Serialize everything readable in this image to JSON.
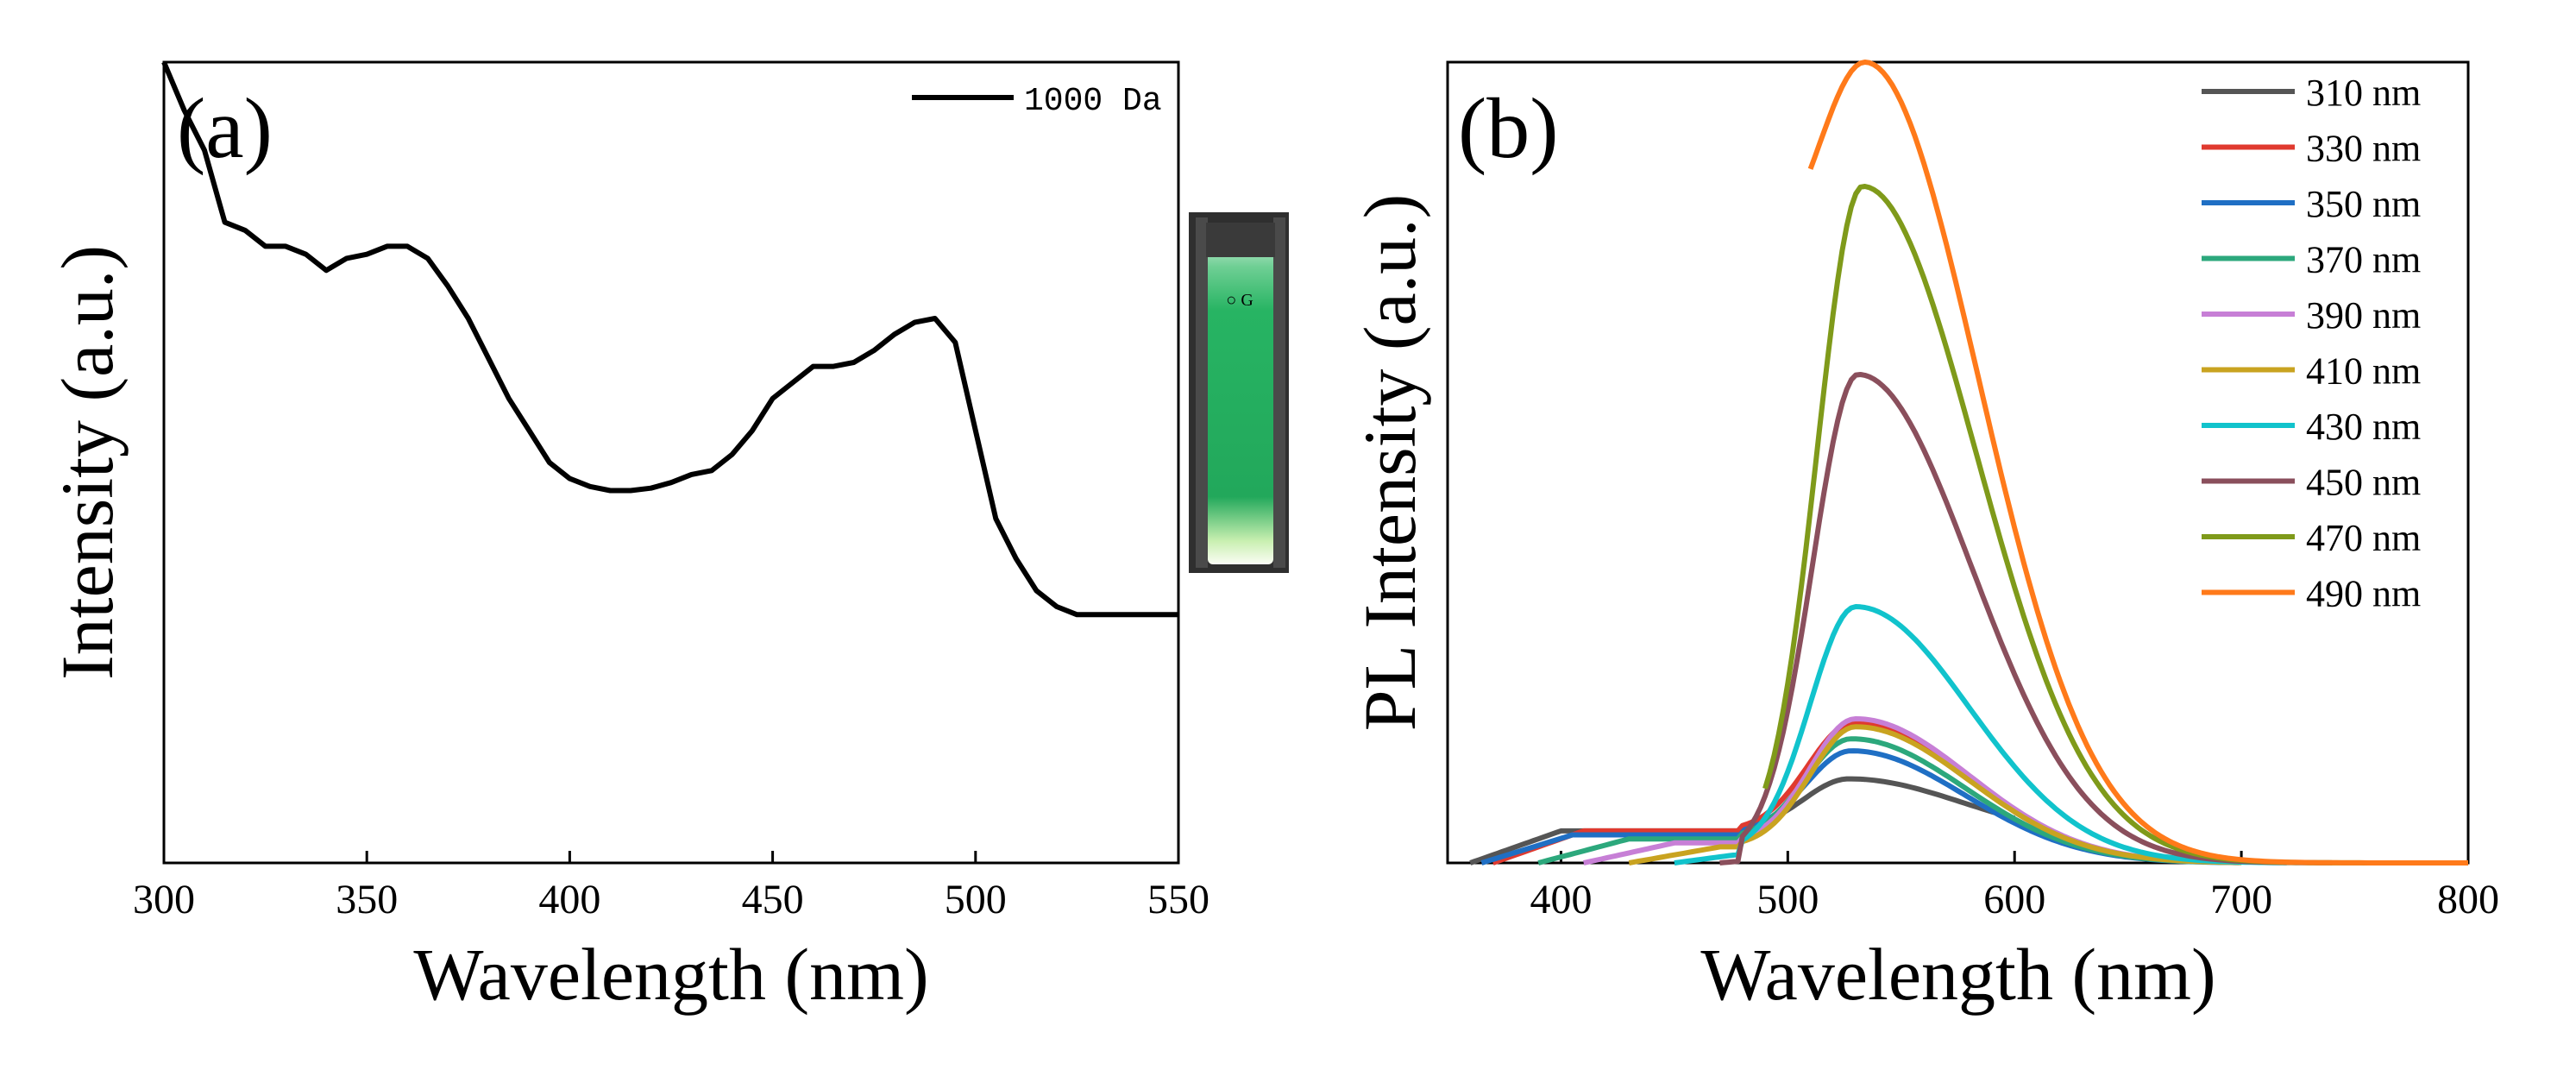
{
  "chart_data": [
    {
      "type": "line",
      "panel_label": "(a)",
      "xlabel": "Wavelength (nm)",
      "ylabel": "Intensity (a.u.)",
      "xlim": [
        300,
        550
      ],
      "ylim": [
        0,
        1
      ],
      "x_ticks": [
        "300",
        "350",
        "400",
        "450",
        "500",
        "550"
      ],
      "y_ticks": [],
      "legend_position": "top-right",
      "inset": "photo of cuvette with green fluorescent solution",
      "colors": {
        "line": "#000000"
      },
      "series": [
        {
          "name": "1000 Da",
          "x": [
            300,
            305,
            310,
            315,
            320,
            325,
            330,
            335,
            340,
            345,
            350,
            355,
            360,
            365,
            370,
            375,
            380,
            385,
            390,
            395,
            400,
            405,
            410,
            415,
            420,
            425,
            430,
            435,
            440,
            445,
            450,
            455,
            460,
            465,
            470,
            475,
            480,
            485,
            490,
            495,
            500,
            505,
            510,
            515,
            520,
            525,
            530,
            535,
            540,
            545,
            550
          ],
          "values": [
            1.0,
            0.94,
            0.89,
            0.8,
            0.79,
            0.77,
            0.77,
            0.76,
            0.74,
            0.755,
            0.76,
            0.77,
            0.77,
            0.755,
            0.72,
            0.68,
            0.63,
            0.58,
            0.54,
            0.5,
            0.48,
            0.47,
            0.465,
            0.465,
            0.468,
            0.475,
            0.485,
            0.49,
            0.51,
            0.54,
            0.58,
            0.6,
            0.62,
            0.62,
            0.625,
            0.64,
            0.66,
            0.675,
            0.68,
            0.65,
            0.54,
            0.43,
            0.38,
            0.34,
            0.32,
            0.31,
            0.31,
            0.31,
            0.31,
            0.31,
            0.31
          ]
        }
      ]
    },
    {
      "type": "line",
      "panel_label": "(b)",
      "xlabel": "Wavelength (nm)",
      "ylabel": "PL Intensity (a.u.)",
      "xlim": [
        350,
        800
      ],
      "ylim": [
        0,
        1
      ],
      "x_ticks": [
        "400",
        "500",
        "600",
        "700",
        "800"
      ],
      "y_ticks": [],
      "legend_position": "top-right",
      "series": [
        {
          "name": "310 nm",
          "color": "#555555",
          "x_start": 360,
          "x_end": 600,
          "peak": 0.105,
          "peak_x": 527,
          "base": 0.04,
          "tail_to": 0.03
        },
        {
          "name": "330 nm",
          "color": "#e03a2f",
          "x_start": 370,
          "x_end": 700,
          "peak": 0.175,
          "peak_x": 529,
          "base": 0.04,
          "tail_to": 0.0
        },
        {
          "name": "350 nm",
          "color": "#1f6fc4",
          "x_start": 365,
          "x_end": 700,
          "peak": 0.14,
          "peak_x": 528,
          "base": 0.035,
          "tail_to": 0.0
        },
        {
          "name": "370 nm",
          "color": "#2ca87c",
          "x_start": 390,
          "x_end": 700,
          "peak": 0.155,
          "peak_x": 528,
          "base": 0.03,
          "tail_to": 0.0
        },
        {
          "name": "390 nm",
          "color": "#c77fd6",
          "x_start": 410,
          "x_end": 700,
          "peak": 0.18,
          "peak_x": 530,
          "base": 0.025,
          "tail_to": 0.0
        },
        {
          "name": "410 nm",
          "color": "#c9a320",
          "x_start": 430,
          "x_end": 700,
          "peak": 0.17,
          "peak_x": 530,
          "base": 0.02,
          "tail_to": 0.0
        },
        {
          "name": "430 nm",
          "color": "#11c3cc",
          "x_start": 450,
          "x_end": 720,
          "peak": 0.32,
          "peak_x": 530,
          "base": 0.015,
          "tail_to": 0.0
        },
        {
          "name": "450 nm",
          "color": "#8a4f5c",
          "x_start": 470,
          "x_end": 740,
          "peak": 0.61,
          "peak_x": 531,
          "base": 0.01,
          "tail_to": 0.0
        },
        {
          "name": "470 nm",
          "color": "#7f9a1a",
          "x_start": 490,
          "x_end": 760,
          "peak": 0.845,
          "peak_x": 533,
          "base": 0.01,
          "tail_to": 0.0
        },
        {
          "name": "490 nm",
          "color": "#ff7a1a",
          "x_start": 510,
          "x_end": 800,
          "peak": 1.0,
          "peak_x": 534,
          "base": 0.74,
          "tail_to": 0.0
        }
      ]
    }
  ]
}
